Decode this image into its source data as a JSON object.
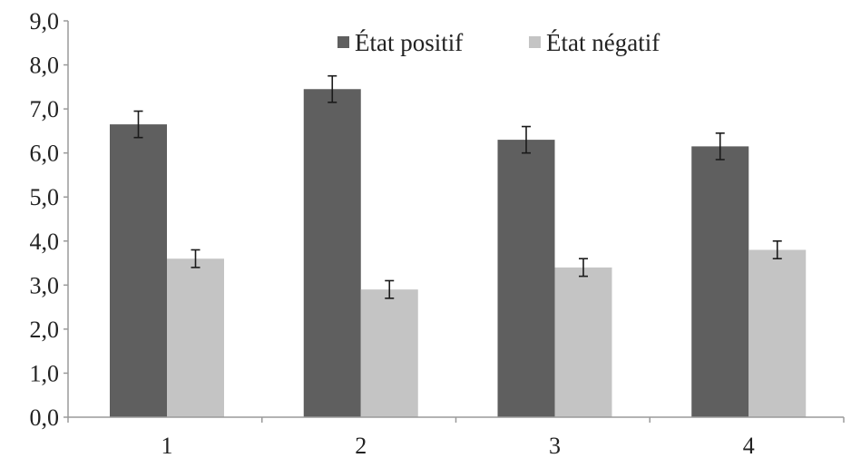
{
  "chart_data": {
    "type": "bar",
    "title": "",
    "xlabel": "",
    "ylabel": "",
    "categories": [
      "1",
      "2",
      "3",
      "4"
    ],
    "ylim": [
      0,
      9
    ],
    "yticks": [
      "0,0",
      "1,0",
      "2,0",
      "3,0",
      "4,0",
      "5,0",
      "6,0",
      "7,0",
      "8,0",
      "9,0"
    ],
    "grid": false,
    "legend_position": "top-right",
    "series": [
      {
        "name": "État positif",
        "color": "#5f5f5f",
        "values": [
          6.65,
          7.45,
          6.3,
          6.15
        ],
        "errors": [
          0.3,
          0.3,
          0.3,
          0.3
        ]
      },
      {
        "name": "État négatif",
        "color": "#c4c4c4",
        "values": [
          3.6,
          2.9,
          3.4,
          3.8
        ],
        "errors": [
          0.2,
          0.2,
          0.2,
          0.2
        ]
      }
    ]
  }
}
